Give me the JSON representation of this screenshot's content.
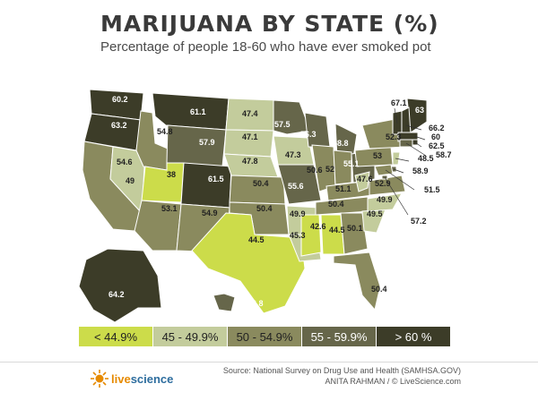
{
  "title": "MARIJUANA BY STATE (%)",
  "subtitle": "Percentage of people 18-60 who have ever smoked pot",
  "legend": [
    {
      "label": "< 44.9%",
      "color": "#ccdc4a",
      "text_color": "#222222"
    },
    {
      "label": "45 - 49.9%",
      "color": "#c3cc9c",
      "text_color": "#222222"
    },
    {
      "label": "50 - 54.9%",
      "color": "#8a8a5e",
      "text_color": "#222222"
    },
    {
      "label": "55 - 59.9%",
      "color": "#66664a",
      "text_color": "#ffffff"
    },
    {
      "label": "> 60 %",
      "color": "#3c3c28",
      "text_color": "#ffffff"
    }
  ],
  "source": "Source: National Survey on Drug Use and Health (SAMHSA.GOV)",
  "credit": "ANITA RAHMAN / © LiveScience.com",
  "logo": {
    "part1": "live",
    "part2": "science"
  },
  "chart_data": {
    "type": "table",
    "unit": "%",
    "states": [
      {
        "state": "WA",
        "value": 60.2
      },
      {
        "state": "OR",
        "value": 63.2
      },
      {
        "state": "CA",
        "value": 54.6
      },
      {
        "state": "NV",
        "value": 49
      },
      {
        "state": "ID",
        "value": 54.8
      },
      {
        "state": "MT",
        "value": 61.1
      },
      {
        "state": "WY",
        "value": 57.9
      },
      {
        "state": "UT",
        "value": 38
      },
      {
        "state": "CO",
        "value": 61.5
      },
      {
        "state": "AZ",
        "value": 53.1
      },
      {
        "state": "NM",
        "value": 54.9
      },
      {
        "state": "ND",
        "value": 47.4
      },
      {
        "state": "SD",
        "value": 47.1
      },
      {
        "state": "NE",
        "value": 47.8
      },
      {
        "state": "KS",
        "value": 50.4
      },
      {
        "state": "OK",
        "value": 50.4
      },
      {
        "state": "TX",
        "value": 44.5
      },
      {
        "state": "MN",
        "value": 57.5
      },
      {
        "state": "IA",
        "value": 47.3
      },
      {
        "state": "MO",
        "value": 55.6
      },
      {
        "state": "AR",
        "value": 49.9
      },
      {
        "state": "LA",
        "value": 45.3
      },
      {
        "state": "WI",
        "value": 56.3
      },
      {
        "state": "IL",
        "value": 50.6
      },
      {
        "state": "MI",
        "value": 58.8
      },
      {
        "state": "IN",
        "value": 52
      },
      {
        "state": "OH",
        "value": 55.1
      },
      {
        "state": "KY",
        "value": 51.1
      },
      {
        "state": "TN",
        "value": 50.4
      },
      {
        "state": "MS",
        "value": 42.6
      },
      {
        "state": "AL",
        "value": 44.5
      },
      {
        "state": "GA",
        "value": 50.1
      },
      {
        "state": "FL",
        "value": 50.4
      },
      {
        "state": "SC",
        "value": 49.5
      },
      {
        "state": "NC",
        "value": 49.9
      },
      {
        "state": "VA",
        "value": 52.9
      },
      {
        "state": "WV",
        "value": 47.6
      },
      {
        "state": "PA",
        "value": 53
      },
      {
        "state": "NY",
        "value": 52.3
      },
      {
        "state": "VT",
        "value": 67.1
      },
      {
        "state": "ME",
        "value": 63
      },
      {
        "state": "NH",
        "value": 66.2
      },
      {
        "state": "MA",
        "value": 60
      },
      {
        "state": "RI",
        "value": 62.5
      },
      {
        "state": "CT",
        "value": 58.7
      },
      {
        "state": "NJ",
        "value": 48.5
      },
      {
        "state": "DE",
        "value": 58.9
      },
      {
        "state": "MD",
        "value": 51.5
      },
      {
        "state": "DC",
        "value": 57.2
      },
      {
        "state": "AK",
        "value": 64.2
      },
      {
        "state": "HI",
        "value": 56.8
      }
    ]
  }
}
